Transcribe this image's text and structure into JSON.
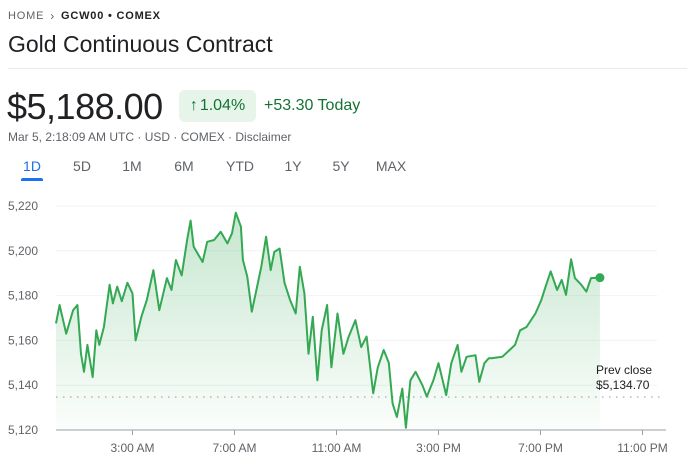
{
  "breadcrumb": {
    "home": "HOME",
    "current": "GCW00 • COMEX"
  },
  "title": "Gold Continuous Contract",
  "quote": {
    "price": "$5,188.00",
    "change_percent": "1.04%",
    "change_abs": "+53.30 Today",
    "subtitle": "Mar 5, 2:18:09 AM UTC · USD · COMEX · Disclaimer"
  },
  "icons": {
    "breadcrumb_separator": "chevron-right-icon",
    "change_direction": "arrow-up-icon"
  },
  "tabs": [
    {
      "label": "1D",
      "active": true
    },
    {
      "label": "5D"
    },
    {
      "label": "1M"
    },
    {
      "label": "6M"
    },
    {
      "label": "YTD"
    },
    {
      "label": "1Y"
    },
    {
      "label": "5Y"
    },
    {
      "label": "MAX"
    }
  ],
  "colors": {
    "up": "#137333",
    "line": "#34a853",
    "accent": "#1a73e8"
  },
  "chart_data": {
    "type": "area",
    "ylim": [
      5120,
      5220
    ],
    "y_ticks": [
      5120,
      5140,
      5160,
      5180,
      5200,
      5220
    ],
    "y_tick_labels": [
      "5,120",
      "5,140",
      "5,160",
      "5,180",
      "5,200",
      "5,220"
    ],
    "x_ticks": [
      3,
      7,
      11,
      15,
      19,
      23
    ],
    "x_tick_labels": [
      "3:00 AM",
      "7:00 AM",
      "11:00 AM",
      "3:00 PM",
      "7:00 PM",
      "11:00 PM"
    ],
    "xlim_hours": [
      0,
      24
    ],
    "grid": true,
    "prev_close": {
      "label": "Prev close",
      "value": 5134.7,
      "value_label": "$5,134.70"
    },
    "series": [
      {
        "x": [
          0,
          0.14,
          0.4,
          0.67,
          0.84,
          0.98,
          1.1,
          1.23,
          1.44,
          1.58,
          1.7,
          1.88,
          2.1,
          2.23,
          2.4,
          2.58,
          2.8,
          3.0,
          3.12,
          3.35,
          3.56,
          3.82,
          4.05,
          4.35,
          4.53,
          4.7,
          4.93,
          5.14,
          5.28,
          5.4,
          5.75,
          5.93,
          6.2,
          6.46,
          6.72,
          6.9,
          7.05,
          7.25,
          7.33,
          7.5,
          7.68,
          7.86,
          8.05,
          8.24,
          8.42,
          8.56,
          8.77,
          8.96,
          9.18,
          9.4,
          9.56,
          9.74,
          9.9,
          10.07,
          10.25,
          10.42,
          10.63,
          10.8,
          11.04,
          11.27,
          11.48,
          11.74,
          11.97,
          12.18,
          12.44,
          12.62,
          12.85,
          13.05,
          13.2,
          13.37,
          13.58,
          13.72,
          13.9,
          14.1,
          14.37,
          14.54,
          14.8,
          15.0,
          15.3,
          15.5,
          15.75,
          15.9,
          16.1,
          16.45,
          16.6,
          16.8,
          16.97,
          17.07,
          17.5,
          18.0,
          18.2,
          18.45,
          18.8,
          19.03,
          19.2,
          19.4,
          19.65,
          19.83,
          20.0,
          20.2,
          20.35,
          20.6,
          20.8,
          20.98,
          21.33
        ],
        "y": [
          5167.6,
          5175.8,
          5163,
          5173.5,
          5175.8,
          5154,
          5146,
          5158,
          5143.6,
          5164.5,
          5158,
          5166,
          5184.8,
          5176.5,
          5184,
          5177.5,
          5185.7,
          5181,
          5160,
          5170.6,
          5178,
          5191.4,
          5173.5,
          5187.8,
          5182.5,
          5195.9,
          5189,
          5204.8,
          5213.5,
          5201.8,
          5195,
          5204,
          5204.8,
          5208.5,
          5203.3,
          5207.8,
          5217,
          5210.8,
          5195.9,
          5188.4,
          5172.8,
          5182.5,
          5192.9,
          5206.3,
          5191.4,
          5199.5,
          5201,
          5185.7,
          5178,
          5172,
          5192.9,
          5181,
          5154,
          5170.6,
          5142.2,
          5164.5,
          5175.8,
          5148,
          5172,
          5154,
          5161.7,
          5169,
          5157,
          5161.7,
          5136.4,
          5148,
          5155.7,
          5150,
          5131.8,
          5125.8,
          5138.5,
          5121,
          5142.2,
          5146,
          5140,
          5134.9,
          5142.2,
          5149.8,
          5135.6,
          5149.8,
          5158,
          5146,
          5152.7,
          5153.4,
          5141.5,
          5149.8,
          5152,
          5152,
          5152.7,
          5158,
          5164.5,
          5166,
          5172,
          5178,
          5184,
          5190.8,
          5182.5,
          5187,
          5180.3,
          5196.2,
          5187.8,
          5184.8,
          5181.8,
          5187.8,
          5188
        ]
      }
    ]
  }
}
